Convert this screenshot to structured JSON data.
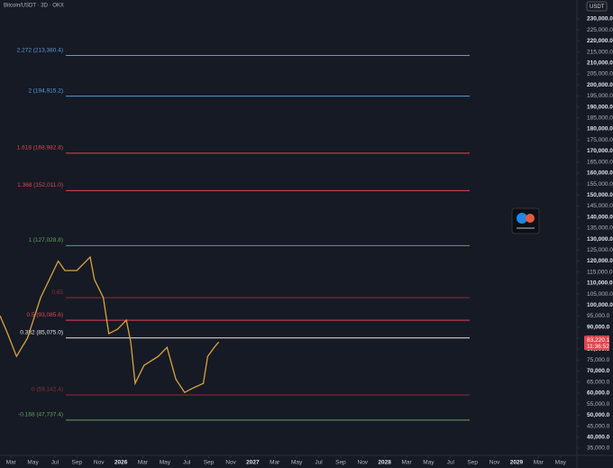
{
  "chart_data": {
    "type": "line",
    "title": "Bitcoin/USDT · 3D · OKX",
    "currency": "USDT",
    "x": [
      1.0,
      1.7,
      2.5,
      3.5,
      4.7,
      6.3,
      6.9,
      8.0,
      9.2,
      9.6,
      10.4,
      10.9,
      11.7,
      12.5,
      12.9,
      13.3,
      14.1,
      15.4,
      16.2,
      17.0,
      17.8,
      18.6,
      19.5,
      19.9,
      20.5,
      20.9
    ],
    "series": [
      {
        "name": "BTC/USDT",
        "color": "#d9a441",
        "values": [
          95160,
          87000,
          76700,
          85000,
          103400,
          120000,
          115700,
          115700,
          121800,
          111500,
          103400,
          87000,
          89000,
          93100,
          83000,
          64400,
          72600,
          76700,
          80800,
          66400,
          60300,
          62400,
          64400,
          76700,
          80800,
          83220.1
        ]
      }
    ],
    "last_price": {
      "value": 83220.1,
      "label": "83,220.1"
    },
    "countdown": "11:36:52",
    "fib_levels": [
      {
        "label": "2.272 (213,380.4)",
        "value": 213380.4,
        "color": "#5b9bd5"
      },
      {
        "label": "2 (194,915.2)",
        "value": 194915.2,
        "color": "#5b9bd5"
      },
      {
        "label": "1.618 (168,982.8)",
        "value": 168982.8,
        "color": "#e0454f"
      },
      {
        "label": "1.368 (152,011.0)",
        "value": 152011.0,
        "color": "#e0454f"
      },
      {
        "label": "1 (127,028.8)",
        "value": 127028.8,
        "color": "#5fa35a"
      },
      {
        "label": "0.65",
        "value": 103361,
        "color": "#8c2f35"
      },
      {
        "label": "0.5 (93,085.6)",
        "value": 93085.6,
        "color": "#e0454f"
      },
      {
        "label": "0.382 (85,075.0)",
        "value": 85075.0,
        "color": "#e8e8e8"
      },
      {
        "label": "0 (59,142.4)",
        "value": 59142.4,
        "color": "#8c2f35"
      },
      {
        "label": "-0.168 (47,737.4)",
        "value": 47737.4,
        "color": "#5fa35a"
      }
    ],
    "xlim": [
      1.0,
      53.5
    ],
    "xticks": [
      {
        "value": 2,
        "label": "Mar"
      },
      {
        "value": 4,
        "label": "May"
      },
      {
        "value": 6,
        "label": "Jul"
      },
      {
        "value": 8,
        "label": "Sep"
      },
      {
        "value": 10,
        "label": "Nov"
      },
      {
        "value": 12,
        "label": "2026"
      },
      {
        "value": 14,
        "label": "Mar"
      },
      {
        "value": 16,
        "label": "May"
      },
      {
        "value": 18,
        "label": "Jul"
      },
      {
        "value": 20,
        "label": "Sep"
      },
      {
        "value": 22,
        "label": "Nov"
      },
      {
        "value": 24,
        "label": "2027"
      },
      {
        "value": 26,
        "label": "Mar"
      },
      {
        "value": 28,
        "label": "May"
      },
      {
        "value": 30,
        "label": "Jul"
      },
      {
        "value": 32,
        "label": "Sep"
      },
      {
        "value": 34,
        "label": "Nov"
      },
      {
        "value": 36,
        "label": "2028"
      },
      {
        "value": 38,
        "label": "Mar"
      },
      {
        "value": 40,
        "label": "May"
      },
      {
        "value": 42,
        "label": "Jul"
      },
      {
        "value": 44,
        "label": "Sep"
      },
      {
        "value": 46,
        "label": "Nov"
      },
      {
        "value": 48,
        "label": "2029"
      },
      {
        "value": 50,
        "label": "Mar"
      },
      {
        "value": 52,
        "label": "May"
      }
    ],
    "ylim": [
      31700,
      238600
    ],
    "yticks": [
      {
        "value": 35000,
        "label": "35,000.0"
      },
      {
        "value": 40000,
        "label": "40,000.0"
      },
      {
        "value": 45000,
        "label": "45,000.0"
      },
      {
        "value": 50000,
        "label": "50,000.0"
      },
      {
        "value": 55000,
        "label": "55,000.0"
      },
      {
        "value": 60000,
        "label": "60,000.0"
      },
      {
        "value": 65000,
        "label": "65,000.0"
      },
      {
        "value": 70000,
        "label": "70,000.0"
      },
      {
        "value": 75000,
        "label": "75,000.0"
      },
      {
        "value": 80000,
        "label": "80,000.0"
      },
      {
        "value": 85000,
        "label": "85,000.0"
      },
      {
        "value": 90000,
        "label": "90,000.0"
      },
      {
        "value": 95000,
        "label": "95,000.0"
      },
      {
        "value": 100000,
        "label": "100,000.0"
      },
      {
        "value": 105000,
        "label": "105,000.0"
      },
      {
        "value": 110000,
        "label": "110,000.0"
      },
      {
        "value": 115000,
        "label": "115,000.0"
      },
      {
        "value": 120000,
        "label": "120,000.0"
      },
      {
        "value": 125000,
        "label": "125,000.0"
      },
      {
        "value": 130000,
        "label": "130,000.0"
      },
      {
        "value": 135000,
        "label": "135,000.0"
      },
      {
        "value": 140000,
        "label": "140,000.0"
      },
      {
        "value": 145000,
        "label": "145,000.0"
      },
      {
        "value": 150000,
        "label": "150,000.0"
      },
      {
        "value": 155000,
        "label": "155,000.0"
      },
      {
        "value": 160000,
        "label": "160,000.0"
      },
      {
        "value": 165000,
        "label": "165,000.0"
      },
      {
        "value": 170000,
        "label": "170,000.0"
      },
      {
        "value": 175000,
        "label": "175,000.0"
      },
      {
        "value": 180000,
        "label": "180,000.0"
      },
      {
        "value": 185000,
        "label": "185,000.0"
      },
      {
        "value": 190000,
        "label": "190,000.0"
      },
      {
        "value": 195000,
        "label": "195,000.0"
      },
      {
        "value": 200000,
        "label": "200,000.0"
      },
      {
        "value": 205000,
        "label": "205,000.0"
      },
      {
        "value": 210000,
        "label": "210,000.0"
      },
      {
        "value": 215000,
        "label": "215,000.0"
      },
      {
        "value": 220000,
        "label": "220,000.0"
      },
      {
        "value": 225000,
        "label": "225,000.0"
      },
      {
        "value": 230000,
        "label": "230,000.0"
      }
    ]
  }
}
